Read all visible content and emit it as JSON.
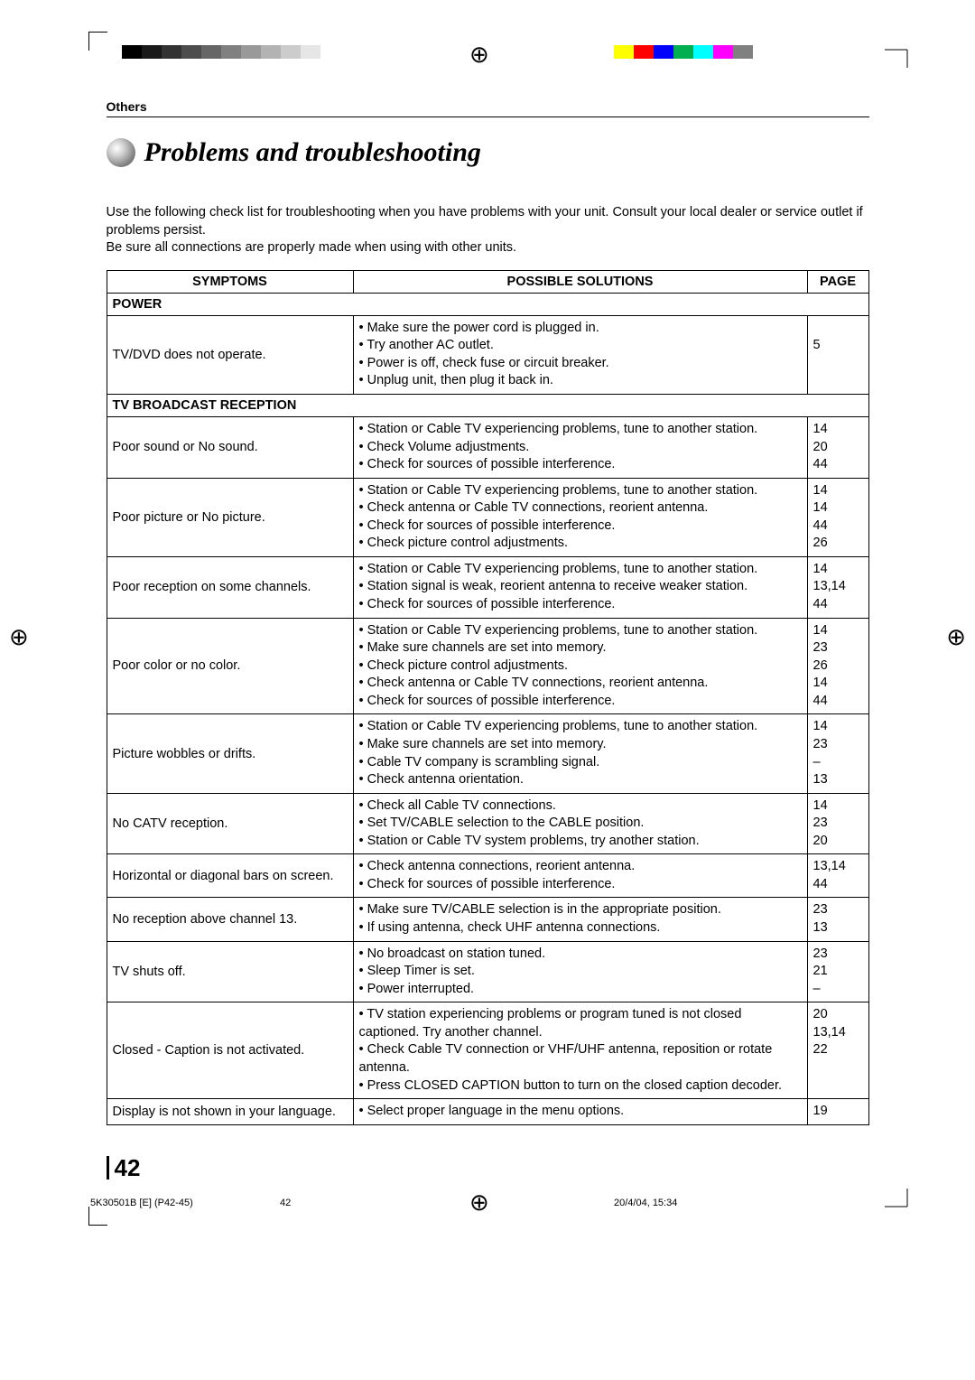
{
  "header": {
    "section_label": "Others",
    "title": "Problems and troubleshooting",
    "intro_line1": "Use the following check list for troubleshooting when you have problems with your unit. Consult your local dealer or service outlet if problems persist.",
    "intro_line2": "Be sure all connections are properly made when using with other units."
  },
  "table": {
    "headers": {
      "symptoms": "SYMPTOMS",
      "solutions": "POSSIBLE SOLUTIONS",
      "page": "PAGE"
    },
    "section1": "POWER",
    "section2": "TV BROADCAST RECEPTION",
    "rows": {
      "power1": {
        "symptom": "TV/DVD does not operate.",
        "sol": [
          "• Make sure the power cord is plugged in.",
          "• Try another AC outlet.",
          "• Power is off, check fuse or circuit breaker.",
          "• Unplug unit, then plug it back in."
        ],
        "page": [
          "",
          "5",
          "",
          ""
        ]
      },
      "tv1": {
        "symptom": "Poor sound or No sound.",
        "sol": [
          "• Station or Cable TV experiencing problems, tune to another station.",
          "• Check Volume adjustments.",
          "• Check for sources of possible interference."
        ],
        "page": [
          "14",
          "20",
          "44"
        ]
      },
      "tv2": {
        "symptom": "Poor picture or No picture.",
        "sol": [
          "• Station or Cable TV experiencing problems, tune to another station.",
          "• Check antenna or Cable TV connections, reorient antenna.",
          "• Check for sources of possible interference.",
          "• Check picture control adjustments."
        ],
        "page": [
          "14",
          "14",
          "44",
          "26"
        ]
      },
      "tv3": {
        "symptom": "Poor reception on some channels.",
        "sol": [
          "• Station or Cable TV experiencing problems, tune to another station.",
          "• Station signal is weak, reorient antenna to receive weaker station.",
          "• Check for sources of possible interference."
        ],
        "page": [
          "14",
          "13,14",
          "44"
        ]
      },
      "tv4": {
        "symptom": "Poor color or no color.",
        "sol": [
          "• Station or Cable TV experiencing problems, tune to another station.",
          "• Make sure channels are set into memory.",
          "• Check picture control adjustments.",
          "• Check antenna or Cable TV connections, reorient antenna.",
          "• Check for sources of possible interference."
        ],
        "page": [
          "14",
          "23",
          "26",
          "14",
          "44"
        ]
      },
      "tv5": {
        "symptom": "Picture wobbles or drifts.",
        "sol": [
          "• Station or Cable TV experiencing problems, tune to another station.",
          "• Make sure channels are set into memory.",
          "• Cable TV company is scrambling signal.",
          "• Check antenna orientation."
        ],
        "page": [
          "14",
          "23",
          "–",
          "13"
        ]
      },
      "tv6": {
        "symptom": "No CATV reception.",
        "sol": [
          "• Check all Cable TV connections.",
          "• Set TV/CABLE selection to the CABLE position.",
          "• Station or Cable TV system problems, try another station."
        ],
        "page": [
          "14",
          "23",
          "20"
        ]
      },
      "tv7": {
        "symptom": "Horizontal or diagonal bars on screen.",
        "sol": [
          "• Check antenna connections, reorient antenna.",
          "• Check for sources of possible interference."
        ],
        "page": [
          "13,14",
          "44"
        ]
      },
      "tv8": {
        "symptom": "No reception above channel 13.",
        "sol": [
          "• Make sure TV/CABLE selection is in the appropriate position.",
          "• If using antenna, check UHF antenna connections."
        ],
        "page": [
          "23",
          "13"
        ]
      },
      "tv9": {
        "symptom": "TV shuts off.",
        "sol": [
          "• No broadcast on station tuned.",
          "• Sleep Timer is set.",
          "• Power interrupted."
        ],
        "page": [
          "23",
          "21",
          "–"
        ]
      },
      "tv10": {
        "symptom": "Closed - Caption is not activated.",
        "sol": [
          "• TV station experiencing problems or program tuned is not closed captioned. Try another channel.",
          "• Check Cable TV connection or VHF/UHF antenna, reposition or rotate antenna.",
          "• Press CLOSED CAPTION button to turn on the closed caption decoder."
        ],
        "page": [
          "20",
          "13,14",
          "22"
        ]
      },
      "tv11": {
        "symptom": "Display is not shown in your language.",
        "sol": [
          "• Select proper language in the menu options."
        ],
        "page": [
          "19"
        ]
      }
    }
  },
  "page_number": "42",
  "footer": {
    "left": "5K30501B [E] (P42-45)",
    "mid": "42",
    "right": "20/4/04, 15:34"
  },
  "marks": {
    "gray": [
      "#000000",
      "#1a1a1a",
      "#333333",
      "#4d4d4d",
      "#666666",
      "#808080",
      "#999999",
      "#b3b3b3",
      "#cccccc",
      "#e6e6e6"
    ],
    "colors": [
      "#ffff00",
      "#ff0000",
      "#0000ff",
      "#00b050",
      "#00ffff",
      "#ff00ff",
      "#808080"
    ]
  }
}
